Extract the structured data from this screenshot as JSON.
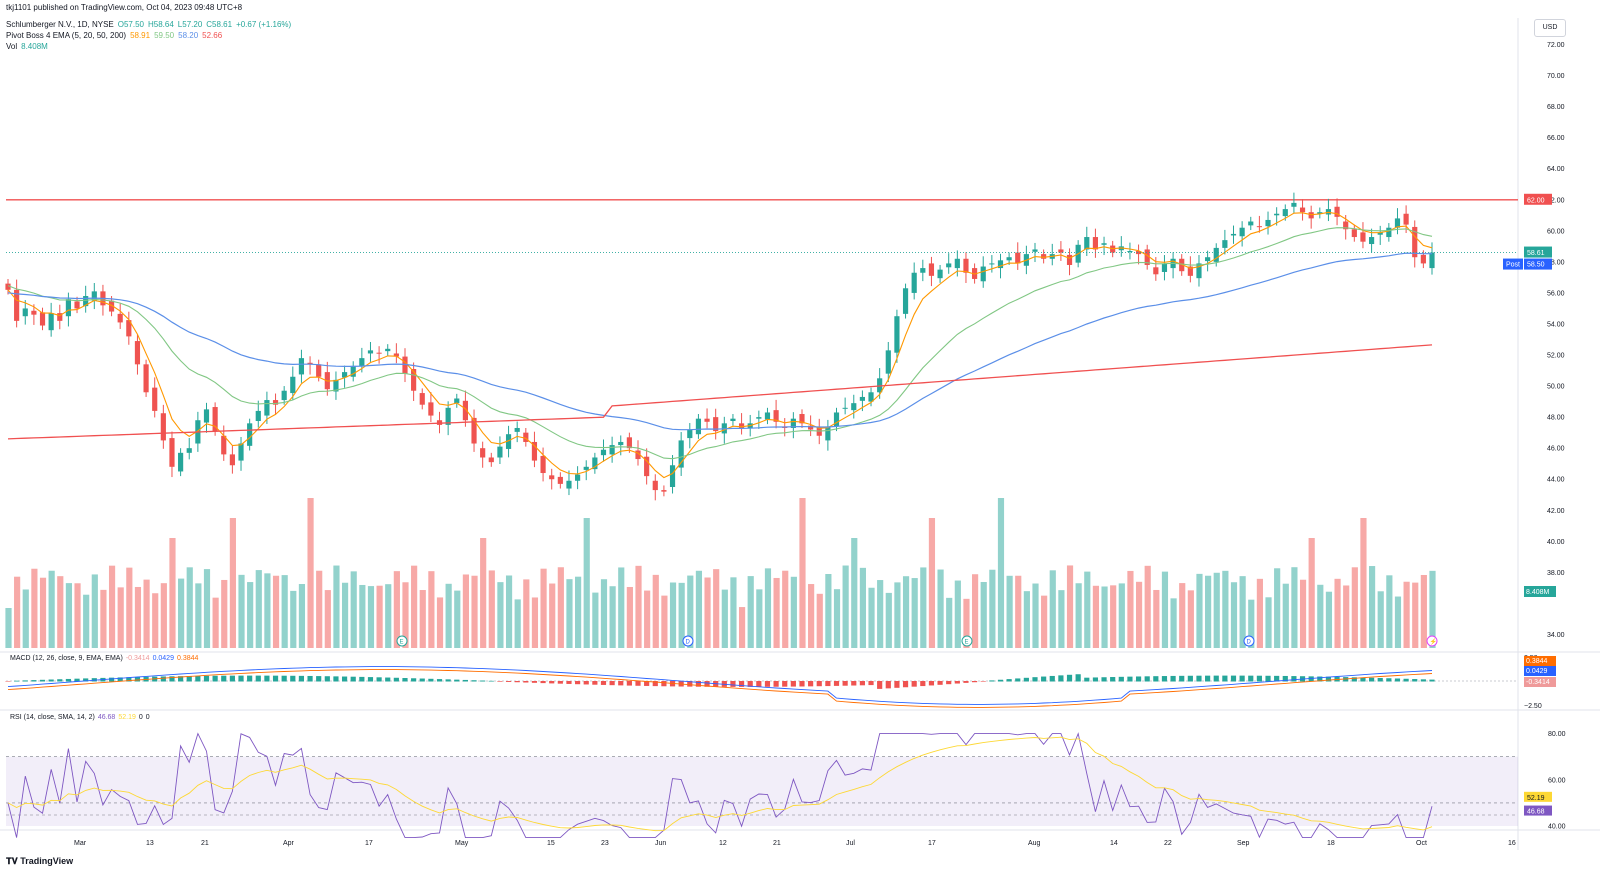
{
  "published": "tkj1101 published on TradingView.com, Oct 04, 2023 09:48 UTC+8",
  "legend": {
    "symbol": "Schlumberger N.V., 1D, NYSE",
    "ohlc": {
      "o": "O57.50",
      "h": "H58.64",
      "l": "L57.20",
      "c": "C58.61",
      "chg": "+0.67 (+1.16%)"
    },
    "ema_label": "Pivot Boss 4 EMA (5, 20, 50, 200)",
    "ema_values": [
      "58.91",
      "59.50",
      "58.20",
      "52.66"
    ],
    "vol_label": "Vol",
    "vol_value": "8.408M"
  },
  "currency_button": "USD",
  "macd_label": "MACD (12, 26, close, 9, EMA, EMA)",
  "macd_values": [
    "-0.3414",
    "0.0429",
    "0.3844"
  ],
  "rsi_label": "RSI (14, close, SMA, 14, 2)",
  "rsi_values": [
    "46.68",
    "52.19",
    "0",
    "0"
  ],
  "brand": "TradingView",
  "colors": {
    "up": "#26a69a",
    "down": "#ef5350",
    "ema5": "#ff9800",
    "ema20": "#81c784",
    "ema50": "#5b8fe8",
    "ema200": "#f05050"
  },
  "chart_data": {
    "type": "candlestick",
    "title": "Schlumberger N.V., 1D, NYSE",
    "x_ticks": [
      "Mar",
      "13",
      "21",
      "Apr",
      "17",
      "May",
      "15",
      "23",
      "Jun",
      "12",
      "21",
      "Jul",
      "17",
      "Aug",
      "14",
      "22",
      "Sep",
      "18",
      "Oct",
      "16"
    ],
    "y_ticks": [
      "72.00",
      "70.00",
      "68.00",
      "66.00",
      "64.00",
      "62.00",
      "60.00",
      "58.00",
      "56.00",
      "54.00",
      "52.00",
      "50.00",
      "48.00",
      "46.00",
      "44.00",
      "42.00",
      "40.00",
      "38.00",
      "34.00"
    ],
    "ylim": [
      33,
      73
    ],
    "resistance_line": 62.0,
    "price_labels": {
      "resistance": "62.00",
      "last": "58.61",
      "post_tag": "Post",
      "post": "58.50",
      "volume": "8.408M"
    },
    "close_prices": [
      56.2,
      54.2,
      55.0,
      54.6,
      53.9,
      54.7,
      54.2,
      55.6,
      55.0,
      55.8,
      56.1,
      55.2,
      54.8,
      54.1,
      53.2,
      51.4,
      49.6,
      48.4,
      46.5,
      44.8,
      45.7,
      46.0,
      47.8,
      48.5,
      47.1,
      45.6,
      44.9,
      46.3,
      47.6,
      48.4,
      49.1,
      48.8,
      49.7,
      50.6,
      51.8,
      51.4,
      50.6,
      49.8,
      50.4,
      50.9,
      51.3,
      51.8,
      52.3,
      52.1,
      52.4,
      51.9,
      50.8,
      49.7,
      48.8,
      48.1,
      47.5,
      48.6,
      49.2,
      47.8,
      46.3,
      45.4,
      45.1,
      46.1,
      46.9,
      47.3,
      46.4,
      45.2,
      44.4,
      44.0,
      43.7,
      43.9,
      44.3,
      44.8,
      45.4,
      45.9,
      46.2,
      46.4,
      46.0,
      45.3,
      44.2,
      43.3,
      43.2,
      44.9,
      46.5,
      47.2,
      47.9,
      47.7,
      47.1,
      47.6,
      47.9,
      47.3,
      47.6,
      48.0,
      48.3,
      47.7,
      47.3,
      47.9,
      47.6,
      47.2,
      46.8,
      47.4,
      48.3,
      48.6,
      48.9,
      49.3,
      49.6,
      50.5,
      52.3,
      54.5,
      56.3,
      57.3,
      57.6,
      57.1,
      57.5,
      57.9,
      58.2,
      57.3,
      56.9,
      57.7,
      57.9,
      58.1,
      58.3,
      57.9,
      58.5,
      58.8,
      58.2,
      58.5,
      58.6,
      57.8,
      59.1,
      59.6,
      58.8,
      59.2,
      58.6,
      59.0,
      58.7,
      58.5,
      57.8,
      57.2,
      57.9,
      58.2,
      57.4,
      57.1,
      57.9,
      58.3,
      58.9,
      59.4,
      59.8,
      60.2,
      60.6,
      60.3,
      60.7,
      61.1,
      61.4,
      61.8,
      61.2,
      60.8,
      61.2,
      61.4,
      60.9,
      60.1,
      59.6,
      59.3,
      59.6,
      59.9,
      60.2,
      60.8,
      60.4,
      58.3,
      57.9,
      58.6
    ]
  }
}
